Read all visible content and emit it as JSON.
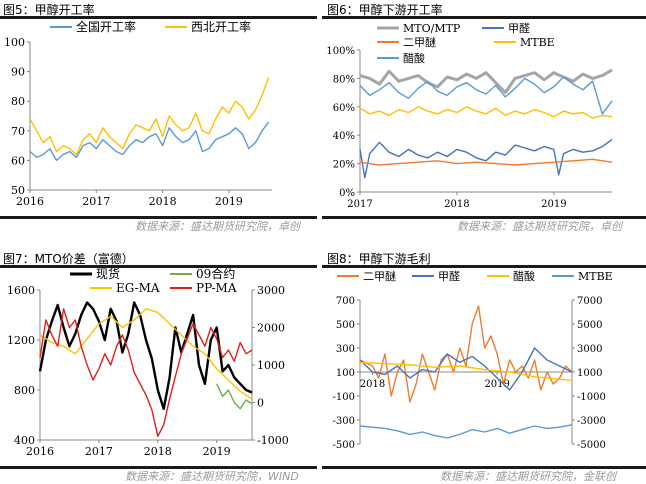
{
  "panels": [
    {
      "title": "图5：甲醇开工率",
      "source": "数据来源：盛达期货研究院，卓创"
    },
    {
      "title": "图6：甲醇下游开工率",
      "source": "数据来源：盛达期货研究院，卓创"
    },
    {
      "title": "图7：MTO价差（富德）",
      "source": "数据来源：盛达期货研究院，WIND"
    },
    {
      "title": "图8：甲醇下游毛利",
      "source": "数据来源：盛达期货研究院，金联创"
    }
  ],
  "chart_data": [
    {
      "type": "line",
      "title": "",
      "x_range": [
        2016,
        2019.65
      ],
      "x_ticks": [
        "2016",
        "2017",
        "2018",
        "2019"
      ],
      "ylim": [
        50,
        100
      ],
      "y_ticks": [
        "50",
        "60",
        "70",
        "80",
        "90",
        "100"
      ],
      "legend_position": "top",
      "series": [
        {
          "name": "全国开工率",
          "color": "#5b9bd5",
          "x": [
            2016.0,
            2016.1,
            2016.2,
            2016.3,
            2016.4,
            2016.5,
            2016.6,
            2016.7,
            2016.8,
            2016.9,
            2017.0,
            2017.1,
            2017.2,
            2017.3,
            2017.4,
            2017.5,
            2017.6,
            2017.7,
            2017.8,
            2017.9,
            2018.0,
            2018.1,
            2018.2,
            2018.3,
            2018.4,
            2018.5,
            2018.6,
            2018.7,
            2018.8,
            2018.9,
            2019.0,
            2019.1,
            2019.2,
            2019.3,
            2019.4,
            2019.5,
            2019.6
          ],
          "y": [
            63,
            61,
            62,
            64,
            60,
            62,
            63,
            61,
            65,
            66,
            64,
            67,
            65,
            63,
            62,
            65,
            67,
            66,
            68,
            69,
            65,
            71,
            68,
            66,
            67,
            70,
            63,
            64,
            67,
            68,
            69,
            71,
            69,
            64,
            66,
            70,
            73
          ]
        },
        {
          "name": "西北开工率",
          "color": "#ffc000",
          "x": [
            2016.0,
            2016.1,
            2016.2,
            2016.3,
            2016.4,
            2016.5,
            2016.6,
            2016.7,
            2016.8,
            2016.9,
            2017.0,
            2017.1,
            2017.2,
            2017.3,
            2017.4,
            2017.5,
            2017.6,
            2017.7,
            2017.8,
            2017.9,
            2018.0,
            2018.1,
            2018.2,
            2018.3,
            2018.4,
            2018.5,
            2018.6,
            2018.7,
            2018.8,
            2018.9,
            2019.0,
            2019.1,
            2019.2,
            2019.3,
            2019.4,
            2019.5,
            2019.6
          ],
          "y": [
            74,
            70,
            66,
            68,
            63,
            65,
            64,
            62,
            67,
            69,
            66,
            71,
            68,
            66,
            64,
            69,
            72,
            71,
            70,
            74,
            68,
            75,
            72,
            70,
            71,
            76,
            70,
            69,
            74,
            78,
            76,
            80,
            78,
            74,
            77,
            82,
            88
          ]
        }
      ]
    },
    {
      "type": "line",
      "title": "",
      "x_range": [
        2017,
        2019.6
      ],
      "x_ticks": [
        "2017",
        "2018",
        "2019"
      ],
      "ylim": [
        0,
        100
      ],
      "y_ticks": [
        "0%",
        "20%",
        "40%",
        "60%",
        "80%",
        "100%"
      ],
      "legend_position": "top",
      "series": [
        {
          "name": "MTO/MTP",
          "color": "#a5a5a5",
          "x": [
            2017.0,
            2017.1,
            2017.2,
            2017.3,
            2017.4,
            2017.5,
            2017.6,
            2017.7,
            2017.8,
            2017.9,
            2018.0,
            2018.1,
            2018.2,
            2018.3,
            2018.4,
            2018.5,
            2018.6,
            2018.7,
            2018.8,
            2018.9,
            2019.0,
            2019.1,
            2019.2,
            2019.3,
            2019.4,
            2019.5,
            2019.6
          ],
          "y": [
            82,
            80,
            76,
            85,
            78,
            80,
            82,
            77,
            74,
            81,
            79,
            83,
            80,
            84,
            77,
            70,
            80,
            82,
            84,
            79,
            84,
            81,
            78,
            83,
            80,
            82,
            86
          ]
        },
        {
          "name": "甲醛",
          "color": "#4472c4",
          "x": [
            2017.0,
            2017.05,
            2017.1,
            2017.2,
            2017.3,
            2017.4,
            2017.5,
            2017.6,
            2017.7,
            2017.8,
            2017.9,
            2018.0,
            2018.1,
            2018.2,
            2018.3,
            2018.4,
            2018.5,
            2018.6,
            2018.7,
            2018.8,
            2018.9,
            2019.0,
            2019.05,
            2019.1,
            2019.2,
            2019.3,
            2019.4,
            2019.5,
            2019.6
          ],
          "y": [
            30,
            10,
            27,
            35,
            28,
            25,
            30,
            26,
            24,
            28,
            25,
            30,
            28,
            24,
            22,
            28,
            26,
            33,
            31,
            29,
            32,
            30,
            12,
            27,
            30,
            28,
            29,
            32,
            37
          ]
        },
        {
          "name": "二甲醚",
          "color": "#ed7d31",
          "x": [
            2017.0,
            2017.2,
            2017.4,
            2017.6,
            2017.8,
            2018.0,
            2018.2,
            2018.4,
            2018.6,
            2018.8,
            2019.0,
            2019.2,
            2019.4,
            2019.6
          ],
          "y": [
            21,
            19,
            20,
            21,
            22,
            20,
            21,
            20,
            19,
            20,
            21,
            22,
            23,
            21
          ]
        },
        {
          "name": "MTBE",
          "color": "#ffc000",
          "x": [
            2017.0,
            2017.1,
            2017.2,
            2017.3,
            2017.4,
            2017.5,
            2017.6,
            2017.7,
            2017.8,
            2017.9,
            2018.0,
            2018.1,
            2018.2,
            2018.3,
            2018.4,
            2018.5,
            2018.6,
            2018.7,
            2018.8,
            2018.9,
            2019.0,
            2019.1,
            2019.2,
            2019.3,
            2019.4,
            2019.5,
            2019.6
          ],
          "y": [
            59,
            55,
            57,
            54,
            58,
            56,
            60,
            57,
            55,
            58,
            56,
            60,
            57,
            55,
            59,
            54,
            57,
            55,
            58,
            56,
            53,
            57,
            55,
            56,
            52,
            54,
            53
          ]
        },
        {
          "name": "醋酸",
          "color": "#5b9bd5",
          "x": [
            2017.0,
            2017.1,
            2017.2,
            2017.3,
            2017.4,
            2017.5,
            2017.6,
            2017.7,
            2017.8,
            2017.9,
            2018.0,
            2018.1,
            2018.2,
            2018.3,
            2018.4,
            2018.5,
            2018.6,
            2018.7,
            2018.8,
            2018.9,
            2019.0,
            2019.1,
            2019.2,
            2019.3,
            2019.4,
            2019.5,
            2019.6
          ],
          "y": [
            75,
            68,
            72,
            77,
            70,
            66,
            73,
            78,
            71,
            68,
            74,
            77,
            72,
            69,
            75,
            67,
            73,
            80,
            76,
            70,
            74,
            81,
            76,
            72,
            78,
            55,
            64
          ]
        }
      ]
    },
    {
      "type": "line",
      "title": "",
      "x_range": [
        2016,
        2019.6
      ],
      "x_ticks": [
        "2016",
        "2017",
        "2018",
        "2019"
      ],
      "ylim": [
        400,
        1600
      ],
      "y_ticks": [
        "400",
        "800",
        "1200",
        "1600"
      ],
      "y2lim": [
        -1000,
        3000
      ],
      "y2_ticks": [
        "-1000",
        "0",
        "1000",
        "2000",
        "3000"
      ],
      "legend_position": "top",
      "series": [
        {
          "name": "现货",
          "color": "#000000",
          "axis": "left",
          "x": [
            2016.0,
            2016.1,
            2016.2,
            2016.3,
            2016.4,
            2016.5,
            2016.6,
            2016.7,
            2016.8,
            2016.9,
            2017.0,
            2017.1,
            2017.2,
            2017.3,
            2017.4,
            2017.5,
            2017.6,
            2017.7,
            2017.8,
            2017.9,
            2018.0,
            2018.1,
            2018.2,
            2018.3,
            2018.4,
            2018.5,
            2018.6,
            2018.7,
            2018.8,
            2018.9,
            2019.0,
            2019.1,
            2019.2,
            2019.3,
            2019.4,
            2019.5,
            2019.6
          ],
          "y": [
            950,
            1200,
            1350,
            1480,
            1300,
            1150,
            1250,
            1400,
            1500,
            1450,
            1350,
            1200,
            1450,
            1350,
            1100,
            1250,
            1500,
            1400,
            1200,
            1050,
            800,
            650,
            900,
            1300,
            1100,
            1250,
            1400,
            1000,
            850,
            1200,
            1300,
            950,
            1000,
            900,
            850,
            800,
            780
          ]
        },
        {
          "name": "09合约",
          "color": "#70ad47",
          "axis": "left",
          "x": [
            2019.0,
            2019.1,
            2019.2,
            2019.3,
            2019.4,
            2019.5,
            2019.6
          ],
          "y": [
            850,
            750,
            800,
            700,
            650,
            720,
            690
          ]
        },
        {
          "name": "EG-MA",
          "color": "#ffc000",
          "axis": "right",
          "x": [
            2016.0,
            2016.2,
            2016.4,
            2016.6,
            2016.8,
            2017.0,
            2017.2,
            2017.4,
            2017.6,
            2017.8,
            2018.0,
            2018.2,
            2018.4,
            2018.6,
            2018.8,
            2019.0,
            2019.2,
            2019.4,
            2019.6
          ],
          "y": [
            1800,
            1600,
            1500,
            1300,
            1700,
            2100,
            2300,
            2000,
            2200,
            2500,
            2400,
            2100,
            1800,
            1500,
            1300,
            900,
            600,
            300,
            100
          ]
        },
        {
          "name": "PP-MA",
          "color": "#e0201b",
          "axis": "right",
          "x": [
            2016.0,
            2016.1,
            2016.2,
            2016.3,
            2016.4,
            2016.5,
            2016.6,
            2016.7,
            2016.8,
            2016.9,
            2017.0,
            2017.1,
            2017.2,
            2017.3,
            2017.4,
            2017.5,
            2017.6,
            2017.7,
            2017.8,
            2017.9,
            2018.0,
            2018.1,
            2018.2,
            2018.3,
            2018.4,
            2018.5,
            2018.6,
            2018.7,
            2018.8,
            2018.9,
            2019.0,
            2019.1,
            2019.2,
            2019.3,
            2019.4,
            2019.5,
            2019.6
          ],
          "y": [
            1200,
            2200,
            1800,
            1500,
            2500,
            2000,
            2200,
            1500,
            1000,
            600,
            900,
            1300,
            1000,
            1500,
            1800,
            1400,
            800,
            500,
            200,
            -200,
            -900,
            -600,
            100,
            700,
            1300,
            1700,
            2100,
            1800,
            1500,
            2000,
            1700,
            1200,
            1400,
            1100,
            1600,
            1300,
            1400
          ]
        }
      ]
    },
    {
      "type": "line",
      "title": "",
      "x_range": [
        2017.9,
        2019.6
      ],
      "x_ticks": [
        "2018",
        "2019"
      ],
      "ylim": [
        -500,
        700
      ],
      "y_ticks": [
        "-500",
        "-300",
        "-100",
        "100",
        "300",
        "500",
        "700"
      ],
      "y2lim": [
        -5000,
        7000
      ],
      "y2_ticks": [
        "-5000",
        "-3000",
        "-1000",
        "1000",
        "3000",
        "5000",
        "7000"
      ],
      "legend_position": "top",
      "series": [
        {
          "name": "二甲醚",
          "color": "#ed7d31",
          "axis": "left",
          "x": [
            2017.9,
            2018.0,
            2018.05,
            2018.1,
            2018.15,
            2018.2,
            2018.25,
            2018.3,
            2018.35,
            2018.4,
            2018.45,
            2018.5,
            2018.55,
            2018.6,
            2018.65,
            2018.7,
            2018.75,
            2018.8,
            2018.85,
            2018.9,
            2018.95,
            2019.0,
            2019.05,
            2019.1,
            2019.15,
            2019.2,
            2019.25,
            2019.3,
            2019.35,
            2019.4,
            2019.45,
            2019.5,
            2019.55,
            2019.6
          ],
          "y": [
            200,
            150,
            50,
            250,
            -100,
            100,
            200,
            -150,
            0,
            250,
            100,
            -50,
            200,
            250,
            100,
            300,
            150,
            500,
            650,
            300,
            400,
            250,
            0,
            200,
            100,
            150,
            50,
            200,
            -50,
            100,
            0,
            50,
            150,
            100
          ]
        },
        {
          "name": "甲醛",
          "color": "#4472c4",
          "axis": "right",
          "x": [
            2017.9,
            2018.0,
            2018.1,
            2018.2,
            2018.3,
            2018.4,
            2018.5,
            2018.6,
            2018.7,
            2018.8,
            2018.9,
            2019.0,
            2019.1,
            2019.2,
            2019.3,
            2019.4,
            2019.5,
            2019.6
          ],
          "y": [
            2000,
            1000,
            800,
            1500,
            500,
            1200,
            1000,
            2500,
            1800,
            2300,
            1500,
            500,
            -500,
            1000,
            3000,
            2000,
            1500,
            1000
          ]
        },
        {
          "name": "醋酸",
          "color": "#ffc000",
          "axis": "right",
          "x": [
            2017.9,
            2018.1,
            2018.3,
            2018.5,
            2018.7,
            2018.9,
            2019.1,
            2019.3,
            2019.5,
            2019.6
          ],
          "y": [
            1800,
            1700,
            1600,
            1400,
            1500,
            1200,
            1000,
            600,
            400,
            300
          ]
        },
        {
          "name": "MTBE",
          "color": "#5b9bd5",
          "axis": "right",
          "x": [
            2017.9,
            2018.0,
            2018.1,
            2018.2,
            2018.3,
            2018.4,
            2018.5,
            2018.6,
            2018.7,
            2018.8,
            2018.9,
            2019.0,
            2019.1,
            2019.2,
            2019.3,
            2019.4,
            2019.5,
            2019.6
          ],
          "y": [
            -3500,
            -3600,
            -3700,
            -3900,
            -4200,
            -4000,
            -4300,
            -4500,
            -4200,
            -3800,
            -4000,
            -3700,
            -4100,
            -3800,
            -3500,
            -3700,
            -3600,
            -3400
          ]
        }
      ]
    }
  ]
}
